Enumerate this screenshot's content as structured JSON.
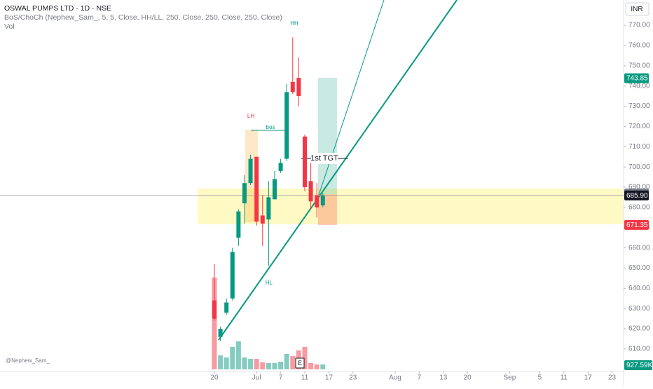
{
  "chart_data": {
    "type": "candlestick",
    "title": "OSWAL PUMPS LTD · 1D · NSE",
    "indicators": [
      "BoS/ChoCh (Nephew_Sam_, 5, 5, Close, HH/LL, 250, Close, 250, Close, 250, Close)",
      "Vol"
    ],
    "currency": "INR",
    "watermark": "@Nephew_Sam_",
    "annotations": [
      "HH",
      "LH",
      "bos",
      "HL",
      "1st TGT",
      "E"
    ],
    "x": [
      0,
      1,
      2,
      3,
      4,
      5,
      6,
      7,
      8,
      9,
      10,
      11,
      12,
      13,
      14,
      15,
      16,
      17,
      18
    ],
    "open": [
      634,
      616,
      628,
      635,
      665,
      682,
      692,
      705,
      676,
      674,
      684,
      698,
      704,
      742,
      744,
      715,
      693,
      686,
      681
    ],
    "high": [
      652,
      621,
      635,
      660,
      679,
      696,
      706,
      705,
      686,
      693,
      698,
      704,
      741,
      764,
      754,
      716,
      702,
      692,
      687
    ],
    "low": [
      624,
      614,
      627,
      634,
      661,
      672,
      691,
      671,
      661,
      651,
      684,
      697,
      703,
      736,
      730,
      688,
      679,
      675,
      680
    ],
    "close": [
      625,
      620,
      633,
      658,
      678,
      692,
      704,
      673,
      672,
      685,
      694,
      702,
      737,
      737,
      735,
      690,
      683,
      680,
      685.9
    ],
    "volume": {
      "values": [
        17360000,
        2650000,
        2250000,
        4240000,
        5300000,
        2250000,
        1990000,
        1990000,
        1330000,
        1190000,
        1190000,
        1460000,
        2920000,
        2520000,
        3580000,
        4240000,
        1190000,
        930000,
        927590
      ],
      "value_labels": [
        null,
        null,
        null,
        null,
        null,
        null,
        null,
        null,
        null,
        null,
        null,
        null,
        null,
        null,
        null,
        null,
        null,
        null,
        "927.59K"
      ]
    },
    "up_color": "#089981",
    "down_color": "#f23645",
    "xlim": [
      -35.58,
      67.91
    ],
    "xticks": [
      {
        "value": 0,
        "label": "20"
      },
      {
        "value": 7,
        "label": "Jul"
      },
      {
        "value": 11,
        "label": "7"
      },
      {
        "value": 15,
        "label": "11"
      },
      {
        "value": 19,
        "label": "17"
      },
      {
        "value": 23,
        "label": "23"
      },
      {
        "value": 30,
        "label": "Aug"
      },
      {
        "value": 34,
        "label": "7"
      },
      {
        "value": 38,
        "label": "13"
      },
      {
        "value": 42,
        "label": "20"
      },
      {
        "value": 49,
        "label": "Sep"
      },
      {
        "value": 54,
        "label": "5"
      },
      {
        "value": 58,
        "label": "11"
      },
      {
        "value": 62,
        "label": "17"
      },
      {
        "value": 66,
        "label": "23"
      }
    ],
    "ylim": [
      598.9,
      782.5
    ],
    "yticks": [
      {
        "value": 610,
        "label": "610.00"
      },
      {
        "value": 620,
        "label": "620.00"
      },
      {
        "value": 630,
        "label": "630.00"
      },
      {
        "value": 640,
        "label": "640.00"
      },
      {
        "value": 650,
        "label": "650.00"
      },
      {
        "value": 660,
        "label": "660.00"
      },
      {
        "value": 670,
        "label": "670.00"
      },
      {
        "value": 680,
        "label": "680.00"
      },
      {
        "value": 690,
        "label": "690.00"
      },
      {
        "value": 700,
        "label": "700.00"
      },
      {
        "value": 710,
        "label": "710.00"
      },
      {
        "value": 720,
        "label": "720.00"
      },
      {
        "value": 730,
        "label": "730.00"
      },
      {
        "value": 740,
        "label": "740.00"
      },
      {
        "value": 750,
        "label": "750.00"
      },
      {
        "value": 760,
        "label": "760.00"
      },
      {
        "value": 770,
        "label": "770.00"
      }
    ],
    "price_labels": [
      {
        "value": 743.85,
        "color": "#089981"
      },
      {
        "value": 686.85,
        "color": "#787b86"
      },
      {
        "value": 671.35,
        "color": "#f23645"
      }
    ],
    "last_price": {
      "value": 685.9,
      "label": "685.90",
      "color": "#131722"
    },
    "grid": false
  }
}
